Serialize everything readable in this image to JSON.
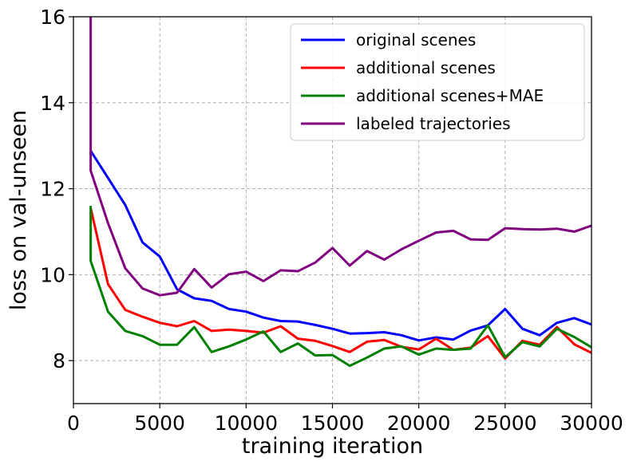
{
  "chart_data": {
    "type": "line",
    "xlabel": "training iteration",
    "ylabel": "loss on val-unseen",
    "xlim": [
      0,
      30000
    ],
    "ylim": [
      7,
      16
    ],
    "xticks": [
      0,
      5000,
      10000,
      15000,
      20000,
      25000,
      30000
    ],
    "yticks": [
      8,
      10,
      12,
      14,
      16
    ],
    "grid": true,
    "legend_position": "top-right",
    "series": [
      {
        "name": "original scenes",
        "color": "#0000ff",
        "x": [
          1000,
          2000,
          3000,
          4000,
          5000,
          6000,
          7000,
          8000,
          9000,
          10000,
          11000,
          12000,
          13000,
          14000,
          15000,
          16000,
          17000,
          18000,
          19000,
          20000,
          21000,
          22000,
          23000,
          24000,
          25000,
          26000,
          27000,
          28000,
          29000,
          30000
        ],
        "y": [
          12.88,
          12.25,
          11.62,
          10.75,
          10.42,
          9.66,
          9.45,
          9.39,
          9.2,
          9.14,
          9.0,
          8.92,
          8.91,
          8.83,
          8.74,
          8.63,
          8.64,
          8.66,
          8.59,
          8.47,
          8.54,
          8.49,
          8.7,
          8.82,
          9.2,
          8.74,
          8.59,
          8.88,
          8.99,
          8.84
        ]
      },
      {
        "name": "additional scenes",
        "color": "#ff0000",
        "x": [
          1000,
          2000,
          3000,
          4000,
          5000,
          6000,
          7000,
          8000,
          9000,
          10000,
          11000,
          12000,
          13000,
          14000,
          15000,
          16000,
          17000,
          18000,
          19000,
          20000,
          21000,
          22000,
          23000,
          24000,
          25000,
          26000,
          27000,
          28000,
          29000,
          30000
        ],
        "y": [
          11.55,
          9.78,
          9.18,
          9.02,
          8.88,
          8.8,
          8.92,
          8.69,
          8.72,
          8.69,
          8.65,
          8.8,
          8.51,
          8.46,
          8.34,
          8.2,
          8.44,
          8.48,
          8.32,
          8.26,
          8.51,
          8.25,
          8.3,
          8.57,
          8.05,
          8.46,
          8.37,
          8.78,
          8.38,
          8.18
        ]
      },
      {
        "name": "additional scenes+MAE",
        "color": "#008000",
        "x": [
          1000,
          1000,
          2000,
          3000,
          4000,
          5000,
          6000,
          7000,
          8000,
          9000,
          10000,
          11000,
          12000,
          13000,
          14000,
          15000,
          16000,
          17000,
          18000,
          19000,
          20000,
          21000,
          22000,
          23000,
          24000,
          25000,
          26000,
          27000,
          28000,
          29000,
          30000
        ],
        "y": [
          11.6,
          10.32,
          9.14,
          8.69,
          8.57,
          8.37,
          8.37,
          8.78,
          8.2,
          8.33,
          8.49,
          8.68,
          8.2,
          8.4,
          8.12,
          8.13,
          7.88,
          8.07,
          8.28,
          8.33,
          8.14,
          8.28,
          8.25,
          8.28,
          8.82,
          8.08,
          8.43,
          8.33,
          8.74,
          8.55,
          8.31
        ]
      },
      {
        "name": "labeled trajectories",
        "color": "#800080",
        "x": [
          1000,
          1000,
          2000,
          3000,
          4000,
          5000,
          6000,
          7000,
          8000,
          9000,
          10000,
          11000,
          12000,
          13000,
          14000,
          15000,
          16000,
          17000,
          18000,
          19000,
          20000,
          21000,
          22000,
          23000,
          24000,
          25000,
          26000,
          27000,
          28000,
          29000,
          30000
        ],
        "y": [
          16.0,
          12.42,
          11.2,
          10.15,
          9.68,
          9.52,
          9.58,
          10.13,
          9.7,
          10.01,
          10.07,
          9.85,
          10.1,
          10.08,
          10.28,
          10.62,
          10.21,
          10.55,
          10.35,
          10.59,
          10.79,
          10.98,
          11.02,
          10.82,
          10.81,
          11.08,
          11.06,
          11.05,
          11.07,
          11.0,
          11.14
        ]
      }
    ]
  }
}
